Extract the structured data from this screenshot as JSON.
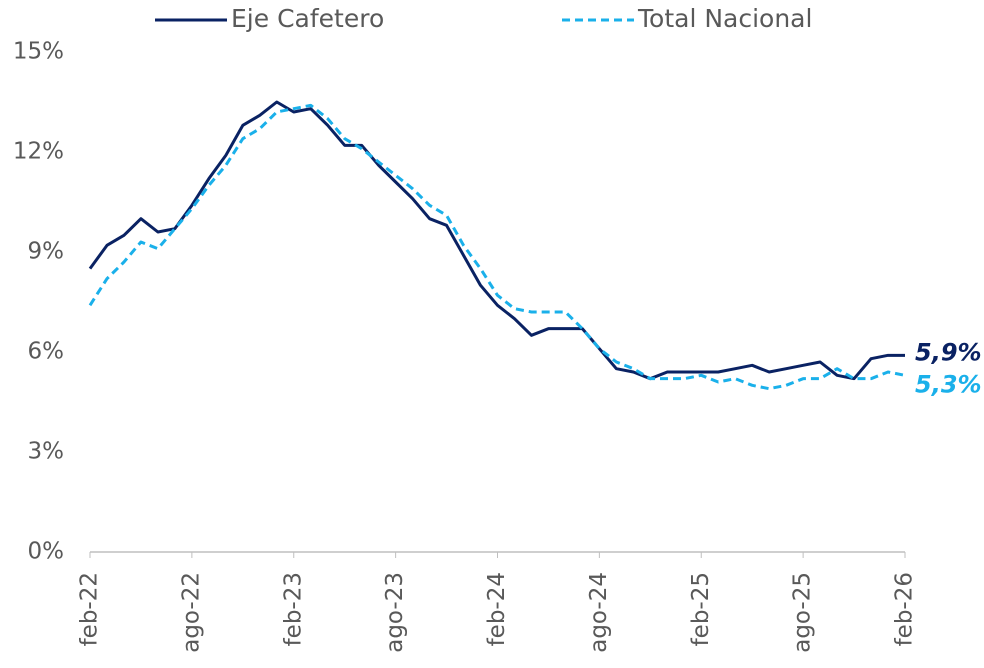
{
  "chart_data": {
    "type": "line",
    "categories": [
      "feb-22",
      null,
      null,
      null,
      null,
      null,
      "ago-22",
      null,
      null,
      null,
      null,
      null,
      "feb-23",
      null,
      null,
      null,
      null,
      null,
      "ago-23",
      null,
      null,
      null,
      null,
      null,
      "feb-24",
      null,
      null,
      null,
      null,
      null,
      "ago-24",
      null,
      null,
      null,
      null,
      null,
      "feb-25",
      null,
      null,
      null,
      null,
      null,
      "ago-25",
      null,
      null,
      null,
      null,
      null,
      "feb-26"
    ],
    "series": [
      {
        "name": "Eje Cafetero",
        "color": "#0a2263",
        "dash": false,
        "values": [
          8.5,
          9.2,
          9.5,
          10.0,
          9.6,
          9.7,
          10.4,
          11.2,
          11.9,
          12.8,
          13.1,
          13.5,
          13.2,
          13.3,
          12.8,
          12.2,
          12.2,
          11.6,
          11.1,
          10.6,
          10.0,
          9.8,
          8.9,
          8.0,
          7.4,
          7.0,
          6.5,
          6.7,
          6.7,
          6.7,
          6.1,
          5.5,
          5.4,
          5.2,
          5.4,
          5.4,
          5.4,
          5.4,
          5.5,
          5.6,
          5.4,
          5.5,
          5.6,
          5.7,
          5.3,
          5.2,
          5.8,
          5.9,
          5.9
        ],
        "value_labels": [
          null,
          null,
          null,
          null,
          null,
          null,
          null,
          null,
          null,
          null,
          null,
          null,
          null,
          null,
          null,
          null,
          null,
          null,
          null,
          null,
          null,
          null,
          null,
          null,
          null,
          null,
          null,
          null,
          null,
          null,
          null,
          null,
          null,
          null,
          null,
          null,
          null,
          null,
          null,
          null,
          null,
          null,
          null,
          null,
          null,
          null,
          null,
          null,
          "5,9%"
        ]
      },
      {
        "name": "Total Nacional",
        "color": "#1ab0ea",
        "dash": true,
        "values": [
          7.4,
          8.2,
          8.7,
          9.3,
          9.1,
          9.7,
          10.3,
          11.0,
          11.6,
          12.4,
          12.7,
          13.2,
          13.3,
          13.4,
          13.0,
          12.4,
          12.1,
          11.7,
          11.3,
          10.9,
          10.4,
          10.1,
          9.2,
          8.5,
          7.7,
          7.3,
          7.2,
          7.2,
          7.2,
          6.7,
          6.1,
          5.7,
          5.5,
          5.2,
          5.2,
          5.2,
          5.3,
          5.1,
          5.2,
          5.0,
          4.9,
          5.0,
          5.2,
          5.2,
          5.5,
          5.2,
          5.2,
          5.4,
          5.3
        ],
        "value_labels": [
          null,
          null,
          null,
          null,
          null,
          null,
          null,
          null,
          null,
          null,
          null,
          null,
          null,
          null,
          null,
          null,
          null,
          null,
          null,
          null,
          null,
          null,
          null,
          null,
          null,
          null,
          null,
          null,
          null,
          null,
          null,
          null,
          null,
          null,
          null,
          null,
          null,
          null,
          null,
          null,
          null,
          null,
          null,
          null,
          null,
          null,
          null,
          null,
          "5,3%"
        ]
      }
    ],
    "ylim": [
      0,
      15
    ],
    "yticks": [
      {
        "value": 0,
        "label": "0%"
      },
      {
        "value": 3,
        "label": "3%"
      },
      {
        "value": 6,
        "label": "6%"
      },
      {
        "value": 9,
        "label": "9%"
      },
      {
        "value": 12,
        "label": "12%"
      },
      {
        "value": 15,
        "label": "15%"
      }
    ],
    "grid": false,
    "legend": "top"
  }
}
